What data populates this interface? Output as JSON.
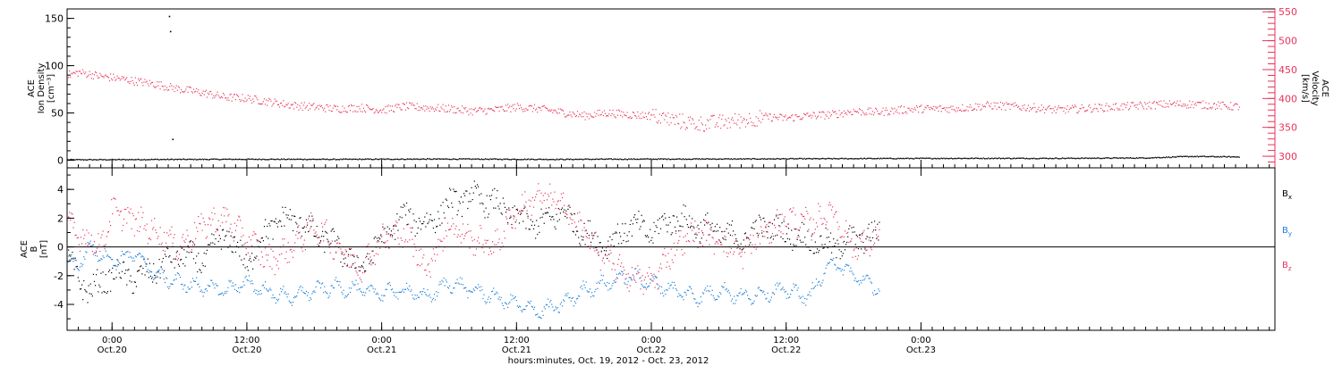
{
  "chart_data": [
    {
      "type": "scatter",
      "panel": "top",
      "ylabel": [
        "ACE",
        "Ion Density",
        "[cm⁻³]"
      ],
      "ylim": [
        -8,
        160
      ],
      "yticks": [
        "0",
        "50",
        "100",
        "150"
      ],
      "y2label": [
        "ACE",
        "Velocity",
        "[km/s]"
      ],
      "y2lim": [
        280,
        555
      ],
      "y2ticks": [
        "300",
        "350",
        "400",
        "450",
        "500",
        "550"
      ],
      "series": [
        {
          "color": "#000000",
          "axis": "left",
          "x": [
            0,
            4,
            8,
            12,
            16,
            20,
            24,
            28,
            32,
            36,
            40,
            44,
            48,
            52,
            56,
            60,
            64,
            68,
            72,
            76,
            80,
            84,
            88,
            92,
            96,
            100,
            104
          ],
          "y": [
            0.5,
            0.6,
            0.8,
            0.9,
            1.0,
            1.0,
            0.9,
            1.1,
            1.2,
            1.2,
            1.0,
            0.9,
            1.1,
            1.2,
            1.3,
            1.3,
            1.5,
            1.6,
            1.8,
            1.9,
            2.0,
            2.0,
            2.0,
            2.2,
            2.4,
            4.0,
            3.5
          ],
          "extra_points": [
            [
              9.1,
              152
            ],
            [
              9.2,
              136
            ],
            [
              9.4,
              22
            ]
          ]
        },
        {
          "color": "#e8335a",
          "axis": "right",
          "x": [
            0,
            1,
            2,
            3,
            4,
            6,
            8,
            10,
            12,
            14,
            16,
            18,
            20,
            22,
            24,
            26,
            28,
            30,
            32,
            34,
            36,
            38,
            40,
            42,
            44,
            46,
            48,
            50,
            52,
            54,
            56,
            58,
            60,
            62,
            64,
            66,
            68,
            70,
            72,
            74,
            76,
            78,
            80,
            82,
            84,
            86,
            88,
            90,
            92,
            94,
            96,
            98,
            100,
            102,
            104
          ],
          "y": [
            440,
            445,
            442,
            438,
            436,
            430,
            424,
            416,
            410,
            402,
            400,
            394,
            388,
            385,
            382,
            384,
            380,
            386,
            384,
            382,
            378,
            380,
            385,
            382,
            376,
            370,
            375,
            372,
            370,
            362,
            356,
            358,
            362,
            368,
            366,
            370,
            372,
            378,
            376,
            380,
            382,
            382,
            384,
            388,
            386,
            384,
            380,
            382,
            384,
            386,
            388,
            390,
            390,
            388,
            386
          ]
        }
      ]
    },
    {
      "type": "scatter",
      "panel": "bottom",
      "ylabel": [
        "ACE",
        "B",
        "[nT]"
      ],
      "ylim": [
        -5.8,
        5.5
      ],
      "yticks": [
        "-4",
        "-2",
        "0",
        "2",
        "4"
      ],
      "xlabel": "hours:minutes, Oct. 19, 2012 - Oct. 23, 2012",
      "x_unit": "hours since 2012-10-19 20:00",
      "xlim": [
        0,
        107.5
      ],
      "xticks": [
        {
          "x": 4,
          "time": "0:00",
          "date": "Oct.20"
        },
        {
          "x": 16,
          "time": "12:00",
          "date": "Oct.20"
        },
        {
          "x": 28,
          "time": "0:00",
          "date": "Oct.21"
        },
        {
          "x": 40,
          "time": "12:00",
          "date": "Oct.21"
        },
        {
          "x": 52,
          "time": "0:00",
          "date": "Oct.22"
        },
        {
          "x": 64,
          "time": "12:00",
          "date": "Oct.22"
        },
        {
          "x": 76,
          "time": "0:00",
          "date": "Oct.23"
        }
      ],
      "hline_y": 0,
      "series": [
        {
          "name": "B",
          "subscript": "x",
          "color": "#000000",
          "x": [
            0,
            1,
            2,
            3,
            4,
            6,
            8,
            10,
            12,
            14,
            16,
            18,
            20,
            22,
            24,
            26,
            28,
            30,
            32,
            34,
            36,
            38,
            40,
            42,
            44,
            46,
            48,
            50,
            52,
            54,
            56,
            58,
            60,
            62,
            64,
            66,
            68,
            70,
            72,
            72.3
          ],
          "y": [
            -0.8,
            -2.4,
            -3.0,
            -2.6,
            -1.8,
            -2.2,
            -1.5,
            -0.5,
            -1.0,
            1.0,
            -1.2,
            1.5,
            2.0,
            1.0,
            0.0,
            -1.5,
            0.5,
            2.2,
            1.5,
            3.0,
            3.5,
            3.0,
            2.0,
            1.5,
            2.5,
            1.0,
            0.0,
            1.5,
            1.0,
            2.0,
            1.5,
            1.0,
            0.5,
            1.5,
            1.0,
            0.5,
            0.0,
            0.5,
            0.8,
            1.0
          ]
        },
        {
          "name": "B",
          "subscript": "y",
          "color": "#1f7fd6",
          "x": [
            0,
            1,
            2,
            3,
            4,
            6,
            8,
            10,
            12,
            14,
            16,
            18,
            20,
            22,
            24,
            26,
            28,
            30,
            32,
            34,
            36,
            38,
            40,
            42,
            44,
            46,
            48,
            50,
            52,
            54,
            56,
            58,
            60,
            62,
            64,
            66,
            68,
            70,
            72,
            72.3
          ],
          "y": [
            -1.0,
            -1.2,
            0.0,
            -0.5,
            -1.0,
            -0.5,
            -2.0,
            -2.5,
            -2.8,
            -3.0,
            -2.5,
            -3.2,
            -3.5,
            -3.0,
            -2.8,
            -3.0,
            -3.2,
            -3.0,
            -3.5,
            -2.5,
            -3.0,
            -3.5,
            -4.0,
            -4.5,
            -4.0,
            -3.0,
            -2.5,
            -2.0,
            -2.5,
            -3.0,
            -3.5,
            -3.0,
            -3.5,
            -3.2,
            -3.0,
            -3.5,
            -1.0,
            -2.0,
            -2.8,
            -3.0
          ]
        },
        {
          "name": "B",
          "subscript": "z",
          "color": "#e8335a",
          "x": [
            0,
            1,
            2,
            3,
            4,
            6,
            8,
            10,
            12,
            14,
            16,
            18,
            20,
            22,
            24,
            26,
            28,
            30,
            32,
            34,
            36,
            38,
            40,
            42,
            44,
            46,
            48,
            50,
            52,
            54,
            56,
            58,
            60,
            62,
            64,
            66,
            68,
            70,
            72,
            72.3
          ],
          "y": [
            1.5,
            0.8,
            0.5,
            0.0,
            2.5,
            1.8,
            1.0,
            0.0,
            1.5,
            2.0,
            0.5,
            -1.0,
            0.0,
            1.5,
            0.0,
            -1.5,
            0.5,
            1.0,
            -1.5,
            1.5,
            0.5,
            0.0,
            2.5,
            3.5,
            3.0,
            1.0,
            -1.0,
            -2.0,
            -2.5,
            0.0,
            1.0,
            0.5,
            -0.5,
            1.0,
            2.0,
            1.5,
            2.5,
            0.0,
            0.5,
            0.5
          ]
        }
      ]
    }
  ]
}
